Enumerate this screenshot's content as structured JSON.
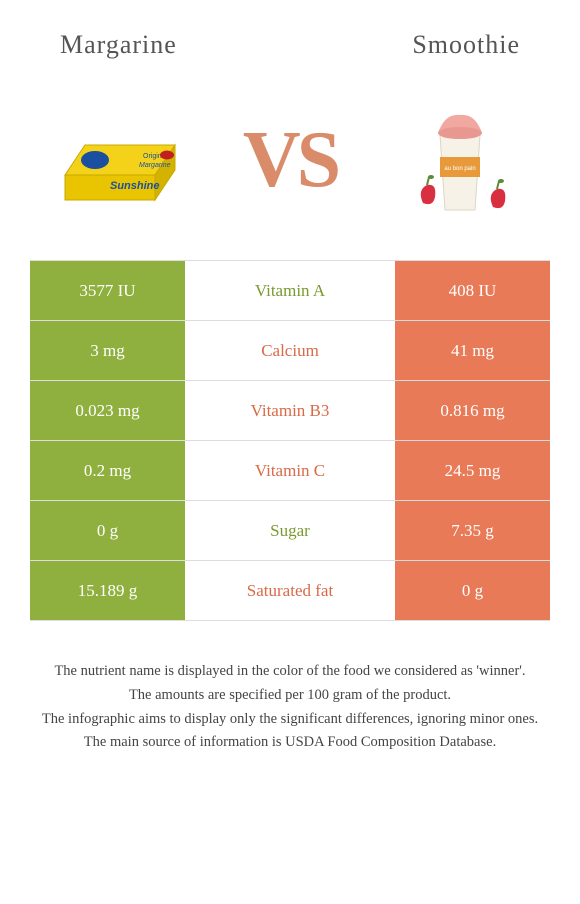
{
  "header": {
    "left_title": "Margarine",
    "right_title": "Smoothie"
  },
  "vs_label": "VS",
  "colors": {
    "left": "#8fb03e",
    "right": "#e87a57",
    "left_text": "#7a9a2f",
    "right_text": "#d86a48",
    "border": "#dddddd"
  },
  "rows": [
    {
      "nutrient": "Vitamin A",
      "left": "3577 IU",
      "right": "408 IU",
      "winner": "left"
    },
    {
      "nutrient": "Calcium",
      "left": "3 mg",
      "right": "41 mg",
      "winner": "right"
    },
    {
      "nutrient": "Vitamin B3",
      "left": "0.023 mg",
      "right": "0.816 mg",
      "winner": "right"
    },
    {
      "nutrient": "Vitamin C",
      "left": "0.2 mg",
      "right": "24.5 mg",
      "winner": "right"
    },
    {
      "nutrient": "Sugar",
      "left": "0 g",
      "right": "7.35 g",
      "winner": "left"
    },
    {
      "nutrient": "Saturated fat",
      "left": "15.189 g",
      "right": "0 g",
      "winner": "right"
    }
  ],
  "footer": [
    "The nutrient name is displayed in the color of the food we considered as 'winner'.",
    "The amounts are specified per 100 gram of the product.",
    "The infographic aims to display only the significant differences, ignoring minor ones.",
    "The main source of information is USDA Food Composition Database."
  ]
}
